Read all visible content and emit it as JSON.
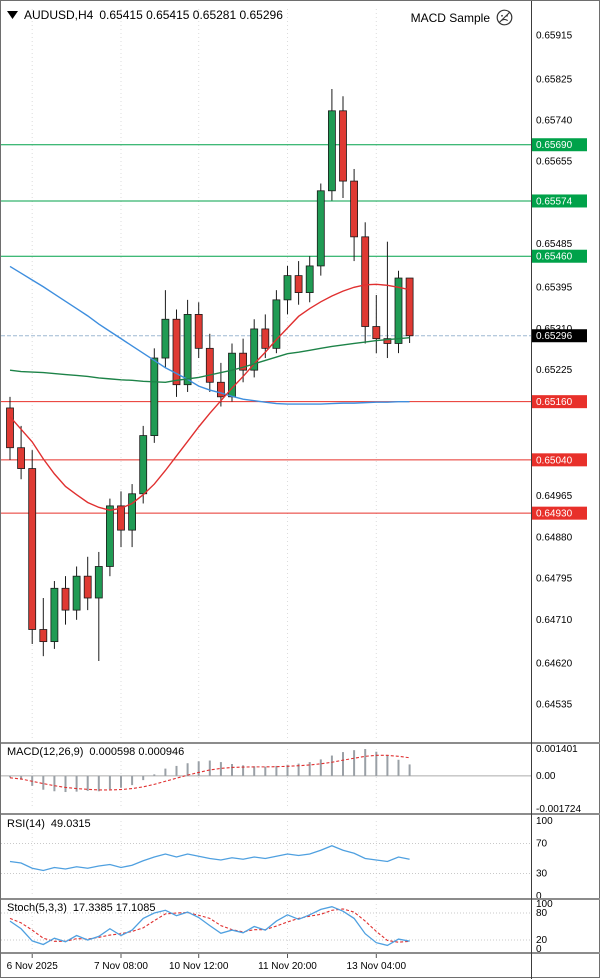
{
  "window": {
    "expert_name": "MACD Sample"
  },
  "colors": {
    "background": "#ffffff",
    "bull": "#209b54",
    "bear": "#df3a33",
    "wick": "#1a1a1a",
    "ma_blue": "#3E8EDE",
    "ma_red": "#E03030",
    "ma_green": "#1D8348",
    "hline_green": "#00A24A",
    "hline_red": "#E8302A",
    "price_badge": "#000000",
    "current_price_line": "#9db8d2",
    "macd_hist": "#9aa0a6",
    "signal_red": "#E03030",
    "indicator_blue": "#4FA0E0",
    "grid": "#dcdcdc",
    "level": "#c9c9c9",
    "zero_line": "#ababab",
    "text": "#000000"
  },
  "chart_data": [
    {
      "type": "candlestick",
      "title": "AUDUSD,H4",
      "ohlc_line": "0.65415 0.65415 0.65281 0.65296",
      "ylim": [
        0.6446,
        0.6597
      ],
      "candles": [
        [
          0.65147,
          0.6517,
          0.6504,
          0.65065
        ],
        [
          0.65065,
          0.6511,
          0.65,
          0.65022
        ],
        [
          0.65022,
          0.6506,
          0.6466,
          0.6469
        ],
        [
          0.6469,
          0.64755,
          0.64635,
          0.64665
        ],
        [
          0.64665,
          0.6479,
          0.6465,
          0.64775
        ],
        [
          0.64775,
          0.648,
          0.647,
          0.6473
        ],
        [
          0.6473,
          0.6482,
          0.6471,
          0.648
        ],
        [
          0.648,
          0.6484,
          0.6473,
          0.64755
        ],
        [
          0.64755,
          0.6485,
          0.64625,
          0.6482
        ],
        [
          0.6482,
          0.6496,
          0.648,
          0.64945
        ],
        [
          0.64945,
          0.64975,
          0.6486,
          0.64895
        ],
        [
          0.64895,
          0.6499,
          0.6486,
          0.6497
        ],
        [
          0.6497,
          0.6511,
          0.6495,
          0.6509
        ],
        [
          0.6509,
          0.6527,
          0.65075,
          0.6525
        ],
        [
          0.6525,
          0.6539,
          0.6523,
          0.6533
        ],
        [
          0.6533,
          0.6535,
          0.6517,
          0.65195
        ],
        [
          0.65195,
          0.6537,
          0.6518,
          0.6534
        ],
        [
          0.6534,
          0.65365,
          0.6525,
          0.6527
        ],
        [
          0.6527,
          0.653,
          0.6518,
          0.652
        ],
        [
          0.652,
          0.6524,
          0.6515,
          0.6517
        ],
        [
          0.6517,
          0.6528,
          0.6516,
          0.6526
        ],
        [
          0.6526,
          0.6529,
          0.652,
          0.65225
        ],
        [
          0.65225,
          0.6533,
          0.6521,
          0.6531
        ],
        [
          0.6531,
          0.6534,
          0.6525,
          0.6527
        ],
        [
          0.6527,
          0.6539,
          0.6526,
          0.6537
        ],
        [
          0.6537,
          0.6544,
          0.6534,
          0.6542
        ],
        [
          0.6542,
          0.6545,
          0.6536,
          0.65385
        ],
        [
          0.65385,
          0.6546,
          0.65365,
          0.6544
        ],
        [
          0.6544,
          0.6561,
          0.6542,
          0.65595
        ],
        [
          0.65595,
          0.65805,
          0.65575,
          0.6576
        ],
        [
          0.6576,
          0.6579,
          0.6558,
          0.65615
        ],
        [
          0.65615,
          0.6564,
          0.6545,
          0.655
        ],
        [
          0.655,
          0.6553,
          0.6528,
          0.65315
        ],
        [
          0.65315,
          0.6538,
          0.6526,
          0.6529
        ],
        [
          0.6529,
          0.6549,
          0.6525,
          0.6528
        ],
        [
          0.6528,
          0.6543,
          0.6526,
          0.65415
        ],
        [
          0.65415,
          0.65415,
          0.65281,
          0.65296
        ]
      ],
      "overlays": [
        {
          "name": "ma-blue",
          "color": "#3E8EDE",
          "values": [
            0.65439,
            0.65425,
            0.65411,
            0.65397,
            0.65382,
            0.65367,
            0.65352,
            0.65337,
            0.6532,
            0.65305,
            0.6529,
            0.65275,
            0.6526,
            0.65245,
            0.6523,
            0.65218,
            0.65206,
            0.65192,
            0.65184,
            0.65178,
            0.65171,
            0.65165,
            0.65162,
            0.65159,
            0.65156,
            0.65155,
            0.65155,
            0.65155,
            0.65155,
            0.65156,
            0.65157,
            0.65157,
            0.65158,
            0.65159,
            0.65159,
            0.6516,
            0.6516
          ]
        },
        {
          "name": "ma-red",
          "color": "#E03030",
          "values": [
            0.65129,
            0.65103,
            0.65077,
            0.65042,
            0.65011,
            0.64985,
            0.64968,
            0.64952,
            0.64942,
            0.64936,
            0.6494,
            0.6495,
            0.64968,
            0.6499,
            0.65018,
            0.65048,
            0.65078,
            0.65108,
            0.65136,
            0.65162,
            0.65188,
            0.65212,
            0.65238,
            0.65262,
            0.65288,
            0.65312,
            0.65336,
            0.65352,
            0.65366,
            0.65378,
            0.65388,
            0.65396,
            0.65401,
            0.65402,
            0.654,
            0.65396,
            0.65391
          ]
        },
        {
          "name": "ma-green",
          "color": "#1D8348",
          "values": [
            0.65225,
            0.65222,
            0.65221,
            0.6522,
            0.65218,
            0.65216,
            0.65214,
            0.65212,
            0.65209,
            0.65207,
            0.65205,
            0.65204,
            0.65202,
            0.65201,
            0.652,
            0.65204,
            0.65207,
            0.6521,
            0.65215,
            0.6522,
            0.65225,
            0.65231,
            0.65238,
            0.65245,
            0.65252,
            0.65259,
            0.65262,
            0.65266,
            0.6527,
            0.65274,
            0.65277,
            0.6528,
            0.65283,
            0.65286,
            0.65288,
            0.6529,
            0.65292
          ]
        }
      ],
      "hlines": [
        {
          "price": 0.6569,
          "label": "0.65690",
          "color": "#00A24A"
        },
        {
          "price": 0.65574,
          "label": "0.65574",
          "color": "#00A24A"
        },
        {
          "price": 0.6546,
          "label": "0.65460",
          "color": "#00A24A"
        },
        {
          "price": 0.6516,
          "label": "0.65160",
          "color": "#E8302A"
        },
        {
          "price": 0.6504,
          "label": "0.65040",
          "color": "#E8302A"
        },
        {
          "price": 0.6493,
          "label": "0.64930",
          "color": "#E8302A"
        }
      ],
      "current_price": {
        "price": 0.65296,
        "label": "0.65296"
      },
      "axis_labels": [
        {
          "v": 0.65915,
          "t": "0.65915"
        },
        {
          "v": 0.65825,
          "t": "0.65825"
        },
        {
          "v": 0.6574,
          "t": "0.65740"
        },
        {
          "v": 0.65655,
          "t": "0.65655"
        },
        {
          "v": 0.65485,
          "t": "0.65485"
        },
        {
          "v": 0.65395,
          "t": "0.65395"
        },
        {
          "v": 0.6531,
          "t": "0.65310"
        },
        {
          "v": 0.65225,
          "t": "0.65225"
        },
        {
          "v": 0.64965,
          "t": "0.64965"
        },
        {
          "v": 0.6488,
          "t": "0.64880"
        },
        {
          "v": 0.64795,
          "t": "0.64795"
        },
        {
          "v": 0.6471,
          "t": "0.64710"
        },
        {
          "v": 0.6462,
          "t": "0.64620"
        },
        {
          "v": 0.64535,
          "t": "0.64535"
        }
      ],
      "x_labels": [
        {
          "bar": 2,
          "t": "6 Nov 2025"
        },
        {
          "bar": 10,
          "t": "7 Nov 08:00"
        },
        {
          "bar": 17,
          "t": "10 Nov 12:00"
        },
        {
          "bar": 25,
          "t": "11 Nov 20:00"
        },
        {
          "bar": 33,
          "t": "13 Nov 04:00"
        }
      ]
    },
    {
      "type": "bar",
      "label_name": "MACD(12,26,9)",
      "label_values": "0.000598 0.000946",
      "ylim": [
        -0.001724,
        0.001401
      ],
      "values": [
        -8e-05,
        -0.0002,
        -0.00052,
        -0.00072,
        -0.0008,
        -0.00084,
        -0.00082,
        -0.00078,
        -0.0008,
        -0.0007,
        -0.00062,
        -0.00048,
        -0.00022,
        8e-05,
        0.00038,
        0.00052,
        0.00066,
        0.00076,
        0.0008,
        0.00072,
        0.00062,
        0.00055,
        0.0005,
        0.00048,
        0.00052,
        0.00058,
        0.00064,
        0.00072,
        0.00086,
        0.00106,
        0.00124,
        0.00134,
        0.0014,
        0.00126,
        0.00106,
        0.00084,
        0.000598
      ],
      "signal": [
        -0.0001,
        -0.00016,
        -0.00028,
        -0.0004,
        -0.00051,
        -0.0006,
        -0.00066,
        -0.0007,
        -0.00073,
        -0.00073,
        -0.00071,
        -0.00066,
        -0.00057,
        -0.00044,
        -0.00028,
        -0.00012,
        4e-05,
        0.00018,
        0.00031,
        0.00039,
        0.00044,
        0.00046,
        0.00047,
        0.00047,
        0.00048,
        0.0005,
        0.00053,
        0.00057,
        0.00063,
        0.00071,
        0.00082,
        0.00092,
        0.00102,
        0.00107,
        0.00107,
        0.00102,
        0.000946
      ],
      "axis_labels": [
        {
          "v": 0.001401,
          "t": "0.001401"
        },
        {
          "v": 0,
          "t": "0.00"
        },
        {
          "v": -0.001724,
          "t": "-0.001724"
        }
      ]
    },
    {
      "type": "line",
      "label_name": "RSI(14)",
      "label_values": "49.0315",
      "ylim": [
        0,
        100
      ],
      "levels": [
        70,
        30
      ],
      "values": [
        46,
        44,
        37,
        34,
        38,
        36,
        39,
        37,
        40,
        42,
        38,
        41,
        47,
        52,
        56,
        52,
        56,
        53,
        50,
        48,
        51,
        49,
        52,
        50,
        53,
        56,
        54,
        56,
        61,
        67,
        61,
        57,
        50,
        48,
        46,
        52,
        49.03
      ],
      "axis_labels": [
        {
          "v": 100,
          "t": "100"
        },
        {
          "v": 70,
          "t": "70"
        },
        {
          "v": 30,
          "t": "30"
        },
        {
          "v": 0,
          "t": "0"
        }
      ]
    },
    {
      "type": "line",
      "label_name": "Stoch(5,3,3)",
      "label_values": "17.3385 17.1085",
      "ylim": [
        0,
        100
      ],
      "levels": [
        80,
        20
      ],
      "k": [
        62,
        45,
        18,
        10,
        24,
        16,
        30,
        20,
        28,
        45,
        30,
        42,
        68,
        80,
        86,
        74,
        82,
        70,
        52,
        35,
        42,
        36,
        50,
        42,
        62,
        76,
        66,
        76,
        88,
        94,
        84,
        68,
        34,
        14,
        8,
        22,
        17.34
      ],
      "d": [
        68,
        58,
        42,
        24,
        17,
        17,
        23,
        22,
        26,
        31,
        34,
        39,
        47,
        63,
        78,
        80,
        81,
        75,
        68,
        52,
        43,
        38,
        43,
        43,
        51,
        60,
        68,
        73,
        77,
        86,
        89,
        82,
        62,
        39,
        19,
        15,
        17.11
      ],
      "axis_labels": [
        {
          "v": 100,
          "t": "100"
        },
        {
          "v": 80,
          "t": "80"
        },
        {
          "v": 20,
          "t": "20"
        },
        {
          "v": 0,
          "t": "0"
        }
      ]
    }
  ]
}
